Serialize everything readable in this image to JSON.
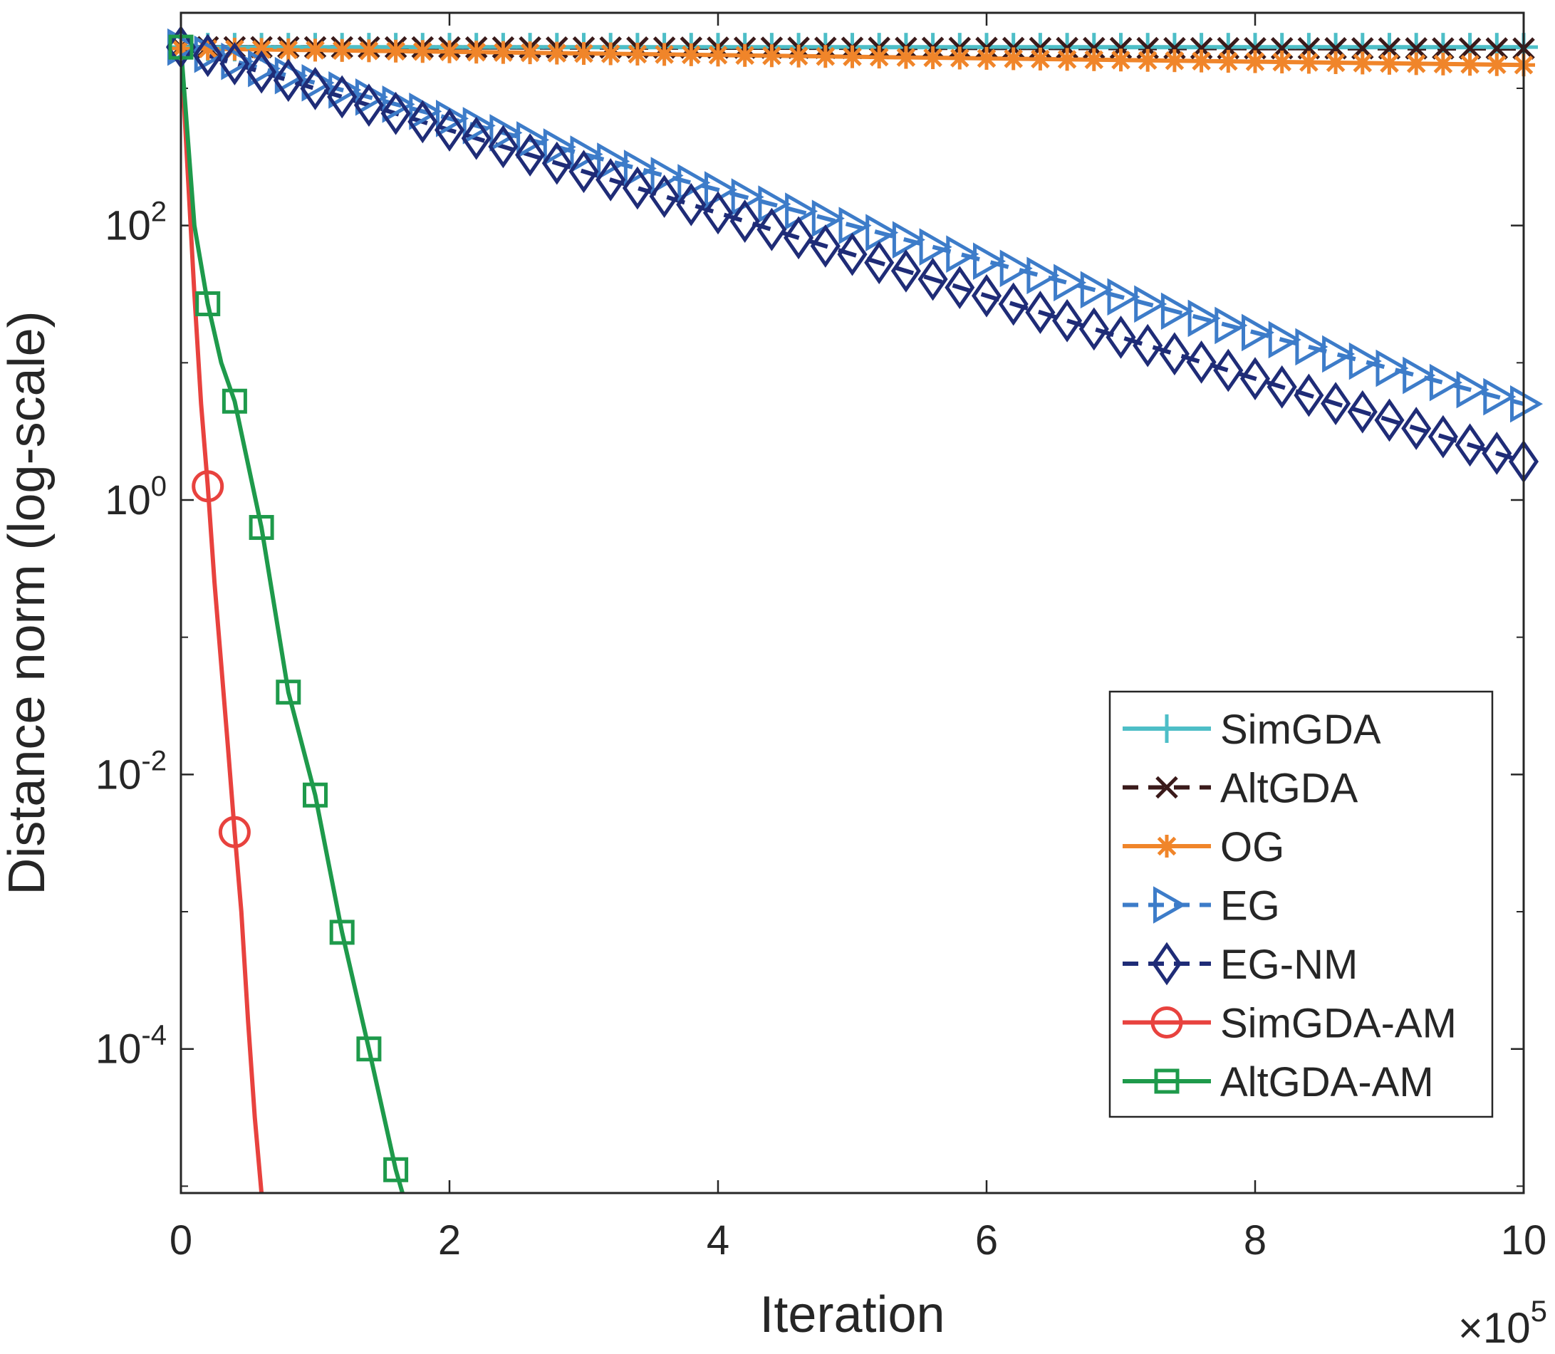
{
  "chart_data": {
    "type": "line",
    "title": "",
    "xlabel": "Iteration",
    "ylabel": "Distance norm (log-scale)",
    "x_scale_label": {
      "base": "×10",
      "exponent": "5"
    },
    "xlim": [
      0,
      10
    ],
    "ylim_log10": [
      -5.05,
      3.55
    ],
    "x_ticks": [
      0,
      2,
      4,
      6,
      8,
      10
    ],
    "x_tick_labels": [
      "0",
      "2",
      "4",
      "6",
      "8",
      "10"
    ],
    "y_ticks_log10": [
      -4,
      -2,
      0,
      2
    ],
    "y_tick_labels": [
      {
        "base": "10",
        "exponent": "-4"
      },
      {
        "base": "10",
        "exponent": "-2"
      },
      {
        "base": "10",
        "exponent": "0"
      },
      {
        "base": "10",
        "exponent": "2"
      }
    ],
    "x_unit_note": "x values in units of 10^5 iterations",
    "legend_position": "lower-right",
    "series": [
      {
        "name": "SimGDA",
        "color": "#4DBEC7",
        "dash": "solid",
        "marker": "plus",
        "x_start": 0,
        "x_end": 10,
        "marker_step": 0.2,
        "log10_start": 3.3,
        "log10_end": 3.3
      },
      {
        "name": "AltGDA",
        "color": "#3A1A1A",
        "dash": "dashed",
        "marker": "x",
        "x_start": 0,
        "x_end": 10,
        "marker_step": 0.2,
        "log10_start": 3.3,
        "log10_end": 3.29
      },
      {
        "name": "OG",
        "color": "#F0852A",
        "dash": "solid",
        "marker": "asterisk",
        "x_start": 0,
        "x_end": 10,
        "marker_step": 0.2,
        "log10_start": 3.29,
        "log10_end": 3.17
      },
      {
        "name": "EG",
        "color": "#3D7CC9",
        "dash": "dashed",
        "marker": "triangle-right",
        "x_start": 0,
        "x_end": 10,
        "marker_step": 0.2,
        "log10_start": 3.3,
        "log10_end": 0.7
      },
      {
        "name": "EG-NM",
        "color": "#1F2C77",
        "dash": "dashed",
        "marker": "diamond",
        "x_start": 0,
        "x_end": 10,
        "marker_step": 0.2,
        "log10_start": 3.3,
        "log10_end": 0.28
      },
      {
        "name": "SimGDA-AM",
        "color": "#E8423E",
        "dash": "solid",
        "marker": "circle",
        "x": [
          0,
          0.05,
          0.1,
          0.15,
          0.2,
          0.25,
          0.3,
          0.35,
          0.4,
          0.45,
          0.5,
          0.55,
          0.6
        ],
        "log10": [
          3.3,
          2.4,
          1.5,
          0.7,
          0.1,
          -0.6,
          -1.2,
          -1.8,
          -2.42,
          -3.0,
          -3.8,
          -4.5,
          -5.05
        ],
        "marker_x": [
          0.2,
          0.4
        ]
      },
      {
        "name": "AltGDA-AM",
        "color": "#1E9A4B",
        "dash": "solid",
        "marker": "square",
        "x": [
          0,
          0.1,
          0.2,
          0.3,
          0.4,
          0.6,
          0.8,
          1.0,
          1.2,
          1.4,
          1.6,
          1.65
        ],
        "log10": [
          3.3,
          2.0,
          1.43,
          1.0,
          0.72,
          -0.2,
          -1.4,
          -2.15,
          -3.15,
          -4.0,
          -4.88,
          -5.05
        ],
        "marker_x": [
          0,
          0.2,
          0.4,
          0.6,
          0.8,
          1.0,
          1.2,
          1.4,
          1.6
        ]
      }
    ]
  }
}
